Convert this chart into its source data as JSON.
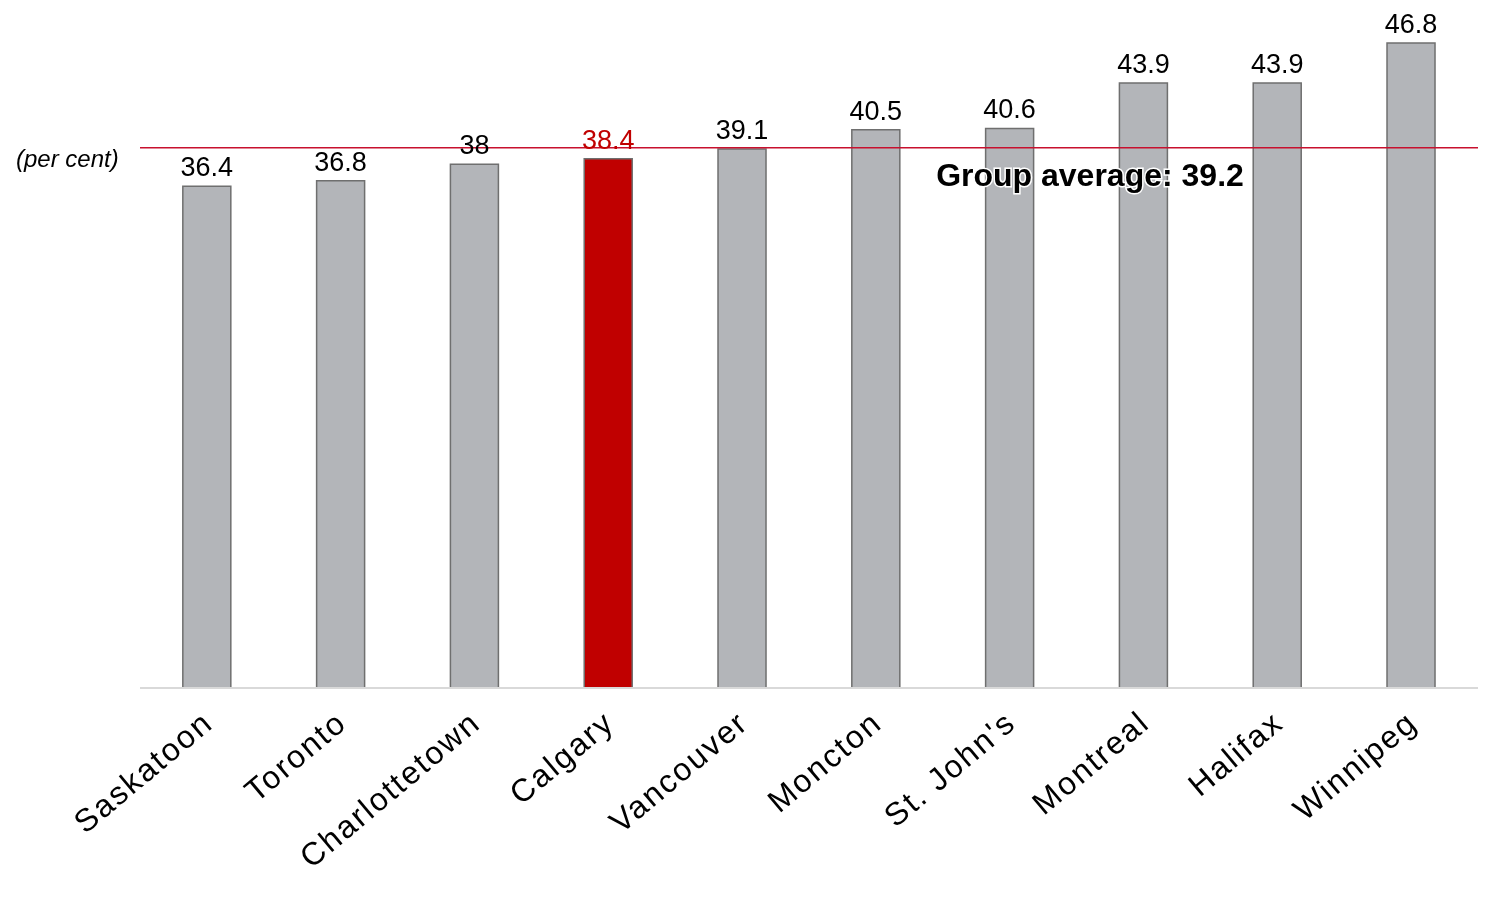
{
  "chart_data": {
    "type": "bar",
    "ylabel": "(per cent)",
    "categories": [
      "Saskatoon",
      "Toronto",
      "Charlottetown",
      "Calgary",
      "Vancouver",
      "Moncton",
      "St. John's",
      "Montreal",
      "Halifax",
      "Winnipeg"
    ],
    "values": [
      36.4,
      36.8,
      38,
      38.4,
      39.1,
      40.5,
      40.6,
      43.9,
      43.9,
      46.8
    ],
    "color": "#b3b5b9",
    "colors": [
      "#b3b5b9",
      "#b3b5b9",
      "#b3b5b9",
      "#c00000",
      "#b3b5b9",
      "#b3b5b9",
      "#b3b5b9",
      "#b3b5b9",
      "#b3b5b9",
      "#b3b5b9"
    ],
    "data_labels": true,
    "ref_lines": [
      {
        "axis": "y",
        "value": 39.2,
        "label": "Group average: 39.2",
        "color": "#c8102e"
      }
    ],
    "grid": false,
    "legend": false
  }
}
